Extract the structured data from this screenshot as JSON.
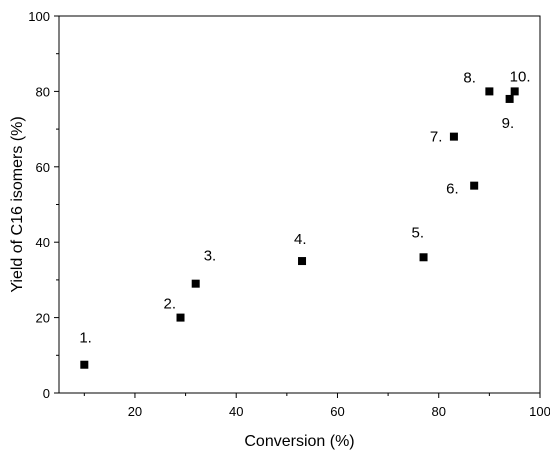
{
  "chart_data": {
    "type": "scatter",
    "title": "",
    "xlabel": "Conversion (%)",
    "ylabel": "Yield of C16 isomers (%)",
    "xlim": [
      5,
      100
    ],
    "ylim": [
      0,
      100
    ],
    "xticks": [
      "20",
      "40",
      "60",
      "80",
      "100"
    ],
    "yticks": [
      "0",
      "20",
      "40",
      "60",
      "80",
      "100"
    ],
    "grid": false,
    "marker": "square",
    "marker_color": "#000000",
    "points": [
      {
        "label": "1.",
        "x": 10,
        "y": 7.5
      },
      {
        "label": "2.",
        "x": 29,
        "y": 20
      },
      {
        "label": "3.",
        "x": 32,
        "y": 29
      },
      {
        "label": "4.",
        "x": 53,
        "y": 35
      },
      {
        "label": "5.",
        "x": 77,
        "y": 36
      },
      {
        "label": "6.",
        "x": 87,
        "y": 55
      },
      {
        "label": "7.",
        "x": 83,
        "y": 68
      },
      {
        "label": "8.",
        "x": 90,
        "y": 80
      },
      {
        "label": "9.",
        "x": 94,
        "y": 78
      },
      {
        "label": "10.",
        "x": 95,
        "y": 80
      }
    ]
  }
}
